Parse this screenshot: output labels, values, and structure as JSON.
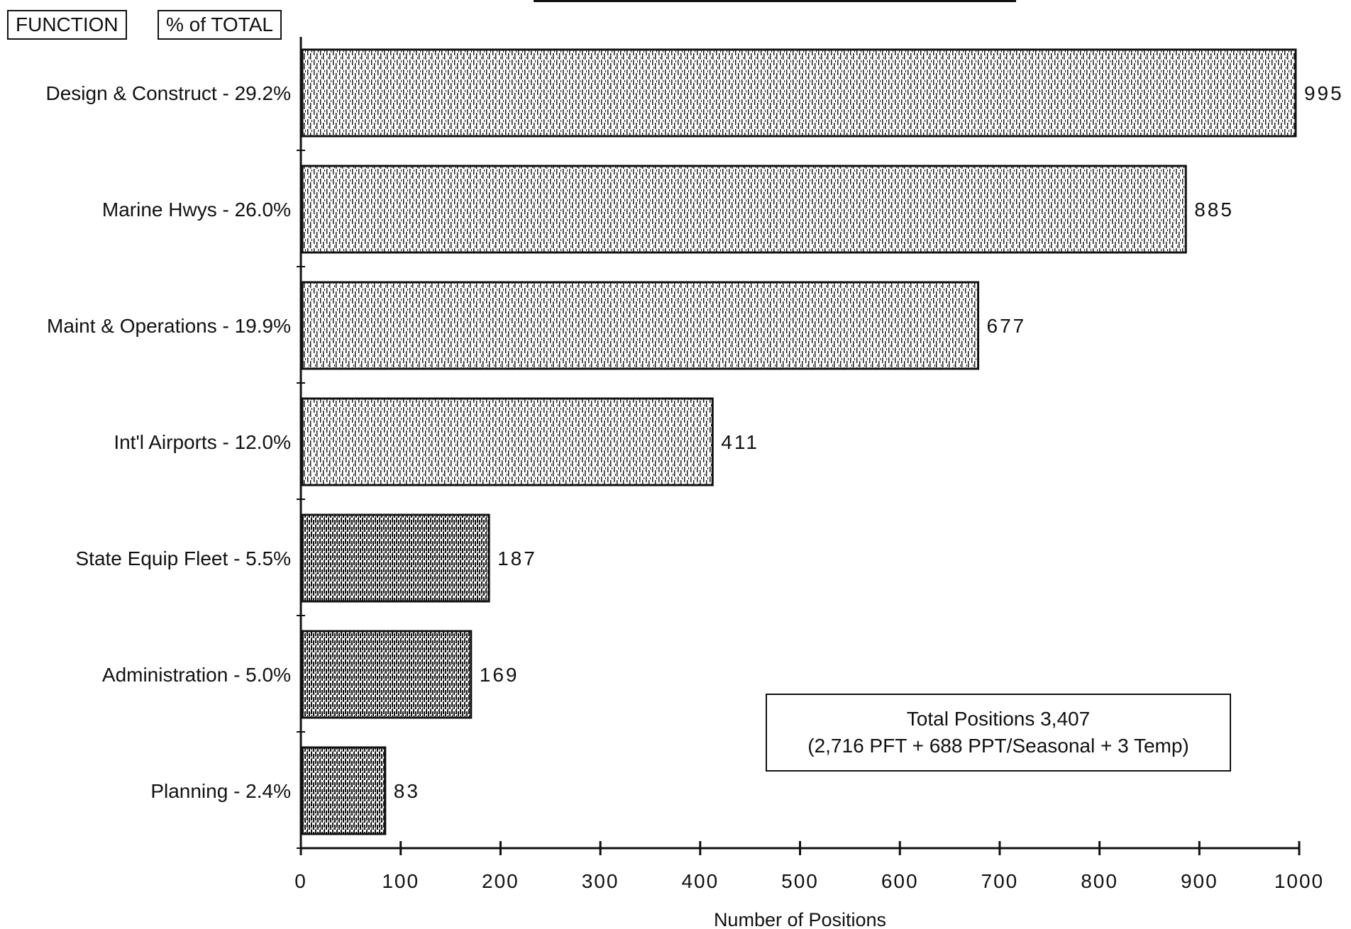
{
  "header": {
    "function_label": "FUNCTION",
    "percent_label": "% of TOTAL"
  },
  "chart_data": {
    "type": "bar",
    "orientation": "horizontal",
    "categories": [
      "Design & Construct - 29.2%",
      "Marine Hwys - 26.0%",
      "Maint & Operations - 19.9%",
      "Int'l Airports - 12.0%",
      "State Equip Fleet - 5.5%",
      "Administration - 5.0%",
      "Planning - 2.4%"
    ],
    "values": [
      995,
      885,
      677,
      411,
      187,
      169,
      83
    ],
    "value_labels": [
      "995",
      "885",
      "677",
      "411",
      "187",
      "169",
      "83"
    ],
    "xlabel": "Number of Positions",
    "ylabel": "",
    "xlim": [
      0,
      1000
    ],
    "xticks": [
      0,
      100,
      200,
      300,
      400,
      500,
      600,
      700,
      800,
      900,
      1000
    ],
    "grid": false,
    "annotation": {
      "line1": "Total Positions 3,407",
      "line2": "(2,716 PFT + 688 PPT/Seasonal + 3 Temp)"
    }
  },
  "colors": {
    "ink": "#111111",
    "bar_dense": "#222222",
    "background": "#ffffff"
  }
}
